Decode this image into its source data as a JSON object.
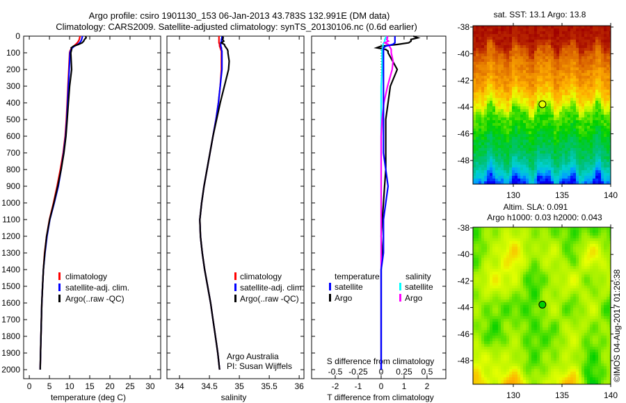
{
  "title": {
    "line1": "Argo profile: csiro 1901130_153 06-Jan-2013 43.783S 132.991E (DM data)",
    "line2": "Climatology: CARS2009. Satellite-adjusted climatology: synTS_20130106.nc (0.6d earlier)"
  },
  "colors": {
    "climatology": "#ff0000",
    "satellite": "#0000ff",
    "argo": "#000000",
    "sal_satellite": "#00ffff",
    "sal_argo": "#ff00ff"
  },
  "chart_data": [
    {
      "type": "line",
      "name": "temperature-profile",
      "xlabel": "temperature (deg C)",
      "ylabel": "",
      "xlim": [
        -1.4,
        32.6
      ],
      "ylim": [
        0,
        2054
      ],
      "yreversed": true,
      "xticks": [
        0,
        5,
        10,
        15,
        20,
        25,
        30
      ],
      "yticks": [
        0,
        100,
        200,
        300,
        400,
        500,
        600,
        700,
        800,
        900,
        1000,
        1100,
        1200,
        1300,
        1400,
        1500,
        1600,
        1700,
        1800,
        1900,
        2000
      ],
      "depth": [
        0,
        10,
        20,
        30,
        40,
        50,
        60,
        70,
        80,
        90,
        100,
        150,
        200,
        300,
        400,
        500,
        600,
        700,
        800,
        900,
        1000,
        1100,
        1200,
        1300,
        1400,
        1500,
        1600,
        1700,
        1800,
        1900,
        2000
      ],
      "series": [
        {
          "name": "climatology",
          "color": "#ff0000",
          "values": [
            12.6,
            12.5,
            12.4,
            12.2,
            11.9,
            11.5,
            11.0,
            10.6,
            10.3,
            10.1,
            10.0,
            9.9,
            9.8,
            9.6,
            9.4,
            9.2,
            8.9,
            8.4,
            7.7,
            6.9,
            6.0,
            5.0,
            4.3,
            3.8,
            3.5,
            3.3,
            3.1,
            3.0,
            2.9,
            2.8,
            2.7
          ]
        },
        {
          "name": "satellite-adj. clim.",
          "color": "#0000ff",
          "values": [
            13.2,
            13.1,
            13.0,
            12.8,
            12.5,
            12.0,
            11.2,
            10.7,
            10.4,
            10.2,
            10.1,
            10.0,
            9.9,
            9.7,
            9.5,
            9.3,
            9.0,
            8.5,
            7.9,
            7.2,
            6.2,
            5.1,
            4.4,
            3.9,
            3.5,
            3.3,
            3.1,
            3.0,
            2.9,
            2.8,
            2.7
          ]
        },
        {
          "name": "Argo(..raw -QC)",
          "color": "#000000",
          "values": [
            14.0,
            14.1,
            13.7,
            13.5,
            13.1,
            12.2,
            11.0,
            10.4,
            10.5,
            10.4,
            10.3,
            10.4,
            10.5,
            10.0,
            9.7,
            9.4,
            9.1,
            8.6,
            7.9,
            7.05,
            6.1,
            5.05,
            4.3,
            3.85,
            3.5,
            3.3,
            3.1,
            3.0,
            2.9,
            2.8,
            2.7
          ]
        }
      ],
      "legend": [
        "climatology",
        "satellite-adj. clim.",
        "Argo(..raw -QC)"
      ]
    },
    {
      "type": "line",
      "name": "salinity-profile",
      "xlabel": "salinity",
      "xlim": [
        33.79,
        36.08
      ],
      "ylim": [
        0,
        2054
      ],
      "yreversed": true,
      "xticks": [
        34,
        34.5,
        35,
        35.5,
        36
      ],
      "series": [
        {
          "name": "climatology",
          "color": "#ff0000",
          "values": [
            34.66,
            34.66,
            34.66,
            34.66,
            34.66,
            34.67,
            34.67,
            34.68,
            34.69,
            34.7,
            34.7,
            34.7,
            34.7,
            34.68,
            34.65,
            34.61,
            34.56,
            34.51,
            34.46,
            34.41,
            34.37,
            34.34,
            34.35,
            34.38,
            34.42,
            34.47,
            34.52,
            34.56,
            34.6,
            34.64,
            34.67
          ]
        },
        {
          "name": "satellite-adj. clim.",
          "color": "#0000ff",
          "values": [
            34.71,
            34.71,
            34.7,
            34.7,
            34.69,
            34.69,
            34.69,
            34.7,
            34.7,
            34.71,
            34.71,
            34.71,
            34.71,
            34.68,
            34.65,
            34.61,
            34.56,
            34.51,
            34.46,
            34.41,
            34.37,
            34.34,
            34.35,
            34.38,
            34.42,
            34.47,
            34.52,
            34.56,
            34.6,
            34.64,
            34.67
          ]
        },
        {
          "name": "Argo(..raw -QC)",
          "color": "#000000",
          "values": [
            34.72,
            34.73,
            34.72,
            34.74,
            34.7,
            34.75,
            34.76,
            34.78,
            34.8,
            34.81,
            34.81,
            34.83,
            34.82,
            34.75,
            34.68,
            34.62,
            34.56,
            34.51,
            34.46,
            34.41,
            34.37,
            34.34,
            34.35,
            34.38,
            34.42,
            34.47,
            34.52,
            34.56,
            34.6,
            34.64,
            34.67
          ]
        }
      ],
      "legend": [
        "climatology",
        "satellite-adj. clim.",
        "Argo(..raw -QC)"
      ],
      "annotation": [
        "Argo Australia",
        "PI: Susan Wijffels"
      ]
    },
    {
      "type": "line",
      "name": "difference-profile",
      "xlabel": "T difference from climatology",
      "xlabel2": "S difference from climatology",
      "xlim": [
        -3.03,
        2.82
      ],
      "xticks": [
        -2,
        -1,
        0,
        1,
        2
      ],
      "xticks_s": [
        "-0.5",
        "-0.25",
        "0",
        "0.25",
        "0.5"
      ],
      "s_to_t_factor": 4,
      "legend_headers": [
        "temperature",
        "salinity"
      ],
      "legend": [
        {
          "label": "satellite",
          "color": "#0000ff"
        },
        {
          "label": "Argo",
          "color": "#000000"
        },
        {
          "label": "satellite",
          "color": "#00ffff"
        },
        {
          "label": "Argo",
          "color": "#ff00ff"
        }
      ]
    },
    {
      "type": "heatmap",
      "name": "sst-map",
      "title": "sat. SST: 13.1 Argo: 13.8",
      "lon_range": [
        125.86,
        140
      ],
      "lat_range": [
        -37.9,
        -49.77
      ],
      "xticks": [
        130,
        135,
        140
      ],
      "yticks": [
        -38,
        -40,
        -42,
        -44,
        -46,
        -48
      ],
      "lat_profile": [
        [
          -37.9,
          0.97
        ],
        [
          -39.2,
          0.95
        ],
        [
          -39.8,
          0.85
        ],
        [
          -41,
          0.79
        ],
        [
          -42,
          0.76
        ],
        [
          -43,
          0.7
        ],
        [
          -43.8,
          0.64
        ],
        [
          -44.4,
          0.5
        ],
        [
          -45.5,
          0.47
        ],
        [
          -46.5,
          0.42
        ],
        [
          -47.5,
          0.39
        ],
        [
          -48.3,
          0.33
        ],
        [
          -49,
          0.24
        ],
        [
          -49.77,
          0.1
        ]
      ],
      "argo_point": {
        "lon": 132.991,
        "lat": -43.783,
        "color": "#e8ff00"
      }
    },
    {
      "type": "heatmap",
      "name": "sla-map",
      "title": "Altim. SLA: 0.091",
      "subtitle": "Argo h1000: 0.03 h2000: 0.043",
      "lon_range": [
        125.86,
        140
      ],
      "lat_range": [
        -37.95,
        -49.78
      ],
      "xticks": [
        130,
        135,
        140
      ],
      "yticks": [
        -38,
        -40,
        -42,
        -44,
        -46,
        -48
      ],
      "grid_lats": [
        -38,
        -40,
        -42,
        -44,
        -46,
        -48,
        -50
      ],
      "grid_lons": [
        126,
        128,
        130,
        132,
        134,
        136,
        138,
        140
      ],
      "grid": [
        [
          0.5,
          0.55,
          0.58,
          0.55,
          0.52,
          0.5,
          0.5,
          0.5
        ],
        [
          0.5,
          0.58,
          0.68,
          0.55,
          0.6,
          0.5,
          0.66,
          0.55
        ],
        [
          0.55,
          0.64,
          0.6,
          0.48,
          0.55,
          0.62,
          0.52,
          0.6
        ],
        [
          0.55,
          0.52,
          0.5,
          0.5,
          0.58,
          0.5,
          0.6,
          0.48
        ],
        [
          0.55,
          0.48,
          0.56,
          0.5,
          0.5,
          0.6,
          0.52,
          0.55
        ],
        [
          0.62,
          0.6,
          0.58,
          0.5,
          0.55,
          0.58,
          0.48,
          0.55
        ],
        [
          0.72,
          0.6,
          0.76,
          0.55,
          0.62,
          0.74,
          0.45,
          0.55
        ]
      ],
      "argo_point": {
        "lon": 132.991,
        "lat": -43.783,
        "color": "#00d000"
      }
    }
  ],
  "colormap": [
    "#00008f",
    "#0000ff",
    "#00a0ff",
    "#00d0d0",
    "#00c080",
    "#00d000",
    "#a0f000",
    "#e8ff00",
    "#ffb000",
    "#e07000",
    "#c03000",
    "#a00000"
  ],
  "credit": "©IMOS 04-Aug-2017 01:26:38"
}
